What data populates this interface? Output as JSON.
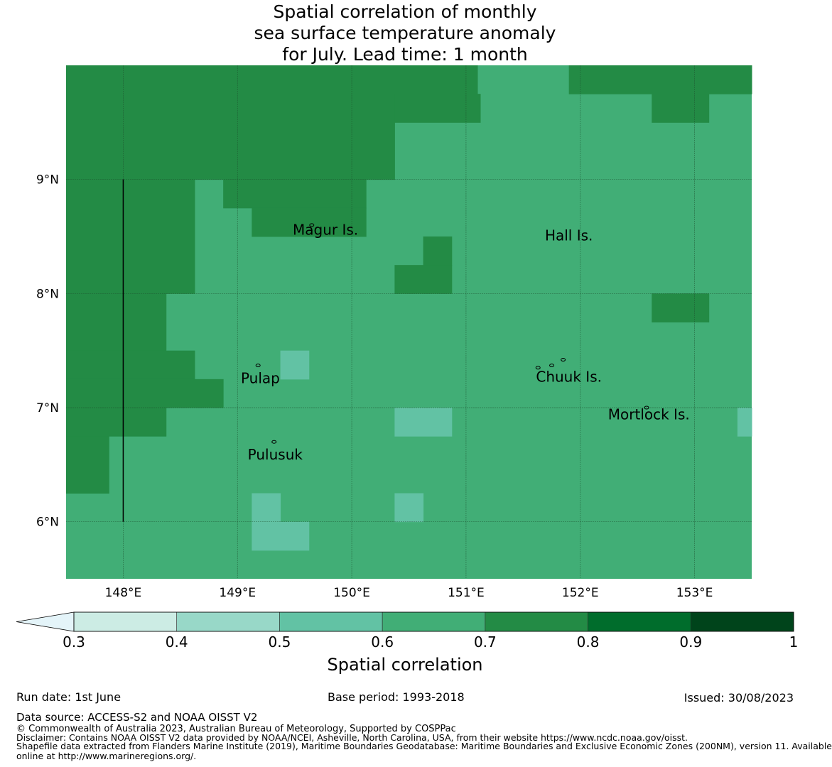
{
  "title_lines": [
    "Spatial correlation of monthly",
    "sea surface temperature anomaly",
    "for July. Lead time: 1 month"
  ],
  "map": {
    "lon_range": [
      147.5,
      153.5
    ],
    "lat_range": [
      5.5,
      10.0
    ],
    "cell_size_deg": 0.25,
    "lon_ticks": [
      "148°E",
      "149°E",
      "150°E",
      "151°E",
      "152°E",
      "153°E"
    ],
    "lat_ticks": [
      "9°N",
      "8°N",
      "7°N",
      "6°N"
    ],
    "lon_tick_values": [
      148,
      149,
      150,
      151,
      152,
      153
    ],
    "lat_tick_values": [
      9,
      8,
      7,
      6
    ],
    "background_class": "0.6-0.7",
    "regions": [
      {
        "lon": [
          147.5,
          151.1
        ],
        "lat": [
          9.75,
          10.0
        ],
        "cls": "0.7-0.8"
      },
      {
        "lon": [
          151.9,
          153.5
        ],
        "lat": [
          9.75,
          10.0
        ],
        "cls": "0.7-0.8"
      },
      {
        "lon": [
          147.5,
          150.375
        ],
        "lat": [
          9.25,
          9.75
        ],
        "cls": "0.7-0.8"
      },
      {
        "lon": [
          150.375,
          151.125
        ],
        "lat": [
          9.5,
          9.75
        ],
        "cls": "0.7-0.8"
      },
      {
        "lon": [
          152.625,
          153.125
        ],
        "lat": [
          9.5,
          9.75
        ],
        "cls": "0.7-0.8"
      },
      {
        "lon": [
          147.5,
          150.375
        ],
        "lat": [
          9.0,
          9.25
        ],
        "cls": "0.7-0.8"
      },
      {
        "lon": [
          147.5,
          148.625
        ],
        "lat": [
          8.0,
          9.0
        ],
        "cls": "0.7-0.8"
      },
      {
        "lon": [
          148.875,
          150.125
        ],
        "lat": [
          8.75,
          9.0
        ],
        "cls": "0.7-0.8"
      },
      {
        "lon": [
          149.125,
          150.125
        ],
        "lat": [
          8.5,
          8.75
        ],
        "cls": "0.7-0.8"
      },
      {
        "lon": [
          150.625,
          150.875
        ],
        "lat": [
          8.25,
          8.5
        ],
        "cls": "0.7-0.8"
      },
      {
        "lon": [
          150.375,
          150.875
        ],
        "lat": [
          8.0,
          8.25
        ],
        "cls": "0.7-0.8"
      },
      {
        "lon": [
          147.5,
          148.375
        ],
        "lat": [
          7.5,
          8.0
        ],
        "cls": "0.7-0.8"
      },
      {
        "lon": [
          152.625,
          153.125
        ],
        "lat": [
          7.75,
          8.0
        ],
        "cls": "0.7-0.8"
      },
      {
        "lon": [
          147.5,
          148.625
        ],
        "lat": [
          7.25,
          7.5
        ],
        "cls": "0.7-0.8"
      },
      {
        "lon": [
          147.5,
          148.875
        ],
        "lat": [
          7.0,
          7.25
        ],
        "cls": "0.7-0.8"
      },
      {
        "lon": [
          147.5,
          148.375
        ],
        "lat": [
          6.75,
          7.0
        ],
        "cls": "0.7-0.8"
      },
      {
        "lon": [
          147.5,
          147.875
        ],
        "lat": [
          6.25,
          6.75
        ],
        "cls": "0.7-0.8"
      },
      {
        "lon": [
          149.375,
          149.625
        ],
        "lat": [
          7.25,
          7.5
        ],
        "cls": "0.5-0.6"
      },
      {
        "lon": [
          150.375,
          150.875
        ],
        "lat": [
          6.75,
          7.0
        ],
        "cls": "0.5-0.6"
      },
      {
        "lon": [
          153.375,
          153.5
        ],
        "lat": [
          6.75,
          7.0
        ],
        "cls": "0.5-0.6"
      },
      {
        "lon": [
          149.125,
          149.375
        ],
        "lat": [
          6.0,
          6.25
        ],
        "cls": "0.5-0.6"
      },
      {
        "lon": [
          150.375,
          150.625
        ],
        "lat": [
          6.0,
          6.25
        ],
        "cls": "0.5-0.6"
      },
      {
        "lon": [
          149.125,
          149.625
        ],
        "lat": [
          5.75,
          6.0
        ],
        "cls": "0.5-0.6"
      }
    ],
    "boundary_line": {
      "lon": 148.0,
      "lat": [
        6.0,
        9.0
      ]
    },
    "places": [
      {
        "name": "Magur Is.",
        "lon": 149.77,
        "lat": 8.55
      },
      {
        "name": "Hall Is.",
        "lon": 151.9,
        "lat": 8.5
      },
      {
        "name": "Pulap",
        "lon": 149.2,
        "lat": 7.25
      },
      {
        "name": "Chuuk Is.",
        "lon": 151.9,
        "lat": 7.26
      },
      {
        "name": "Mortlock Is.",
        "lon": 152.6,
        "lat": 6.93
      },
      {
        "name": "Pulusuk",
        "lon": 149.33,
        "lat": 6.58
      }
    ],
    "islands": [
      {
        "lon": 149.65,
        "lat": 8.6
      },
      {
        "lon": 149.18,
        "lat": 7.37
      },
      {
        "lon": 151.63,
        "lat": 7.35
      },
      {
        "lon": 151.85,
        "lat": 7.42
      },
      {
        "lon": 151.75,
        "lat": 7.37
      },
      {
        "lon": 152.58,
        "lat": 7.0
      },
      {
        "lon": 149.32,
        "lat": 6.7
      }
    ]
  },
  "colorbar": {
    "extend": "min",
    "label": "Spatial correlation",
    "tick_labels": [
      "0.3",
      "0.4",
      "0.5",
      "0.6",
      "0.7",
      "0.8",
      "0.9",
      "1"
    ],
    "classes": [
      {
        "id": "below-0.3",
        "color": "#e4f4f9"
      },
      {
        "id": "0.3-0.4",
        "color": "#ccece4"
      },
      {
        "id": "0.4-0.5",
        "color": "#98d8c8"
      },
      {
        "id": "0.5-0.6",
        "color": "#62c2a4"
      },
      {
        "id": "0.6-0.7",
        "color": "#41ae76"
      },
      {
        "id": "0.7-0.8",
        "color": "#238b45"
      },
      {
        "id": "0.8-0.9",
        "color": "#006d2c"
      },
      {
        "id": "0.9-1",
        "color": "#00441b"
      }
    ]
  },
  "footer": {
    "run_date": "Run date: 1st June",
    "base_period": "Base period: 1993-2018",
    "issued": "Issued: 30/08/2023",
    "data_source": "Data source: ACCESS-S2 and NOAA OISST V2",
    "copyright": "© Commonwealth of Australia 2023, Australian Bureau of Meteorology, Supported by COSPPac",
    "disclaimer": "Disclaimer: Contains NOAA OISST V2 data provided by NOAA/NCEI, Asheville, North Carolina, USA, from their website https://www.ncdc.noaa.gov/oisst.",
    "shapefile_1": "Shapefile data extracted from Flanders Marine Institute (2019), Maritime Boundaries Geodatabase: Maritime Boundaries and Exclusive Economic Zones (200NM), version 11. Available",
    "shapefile_2": "online at http://www.marineregions.org/."
  }
}
